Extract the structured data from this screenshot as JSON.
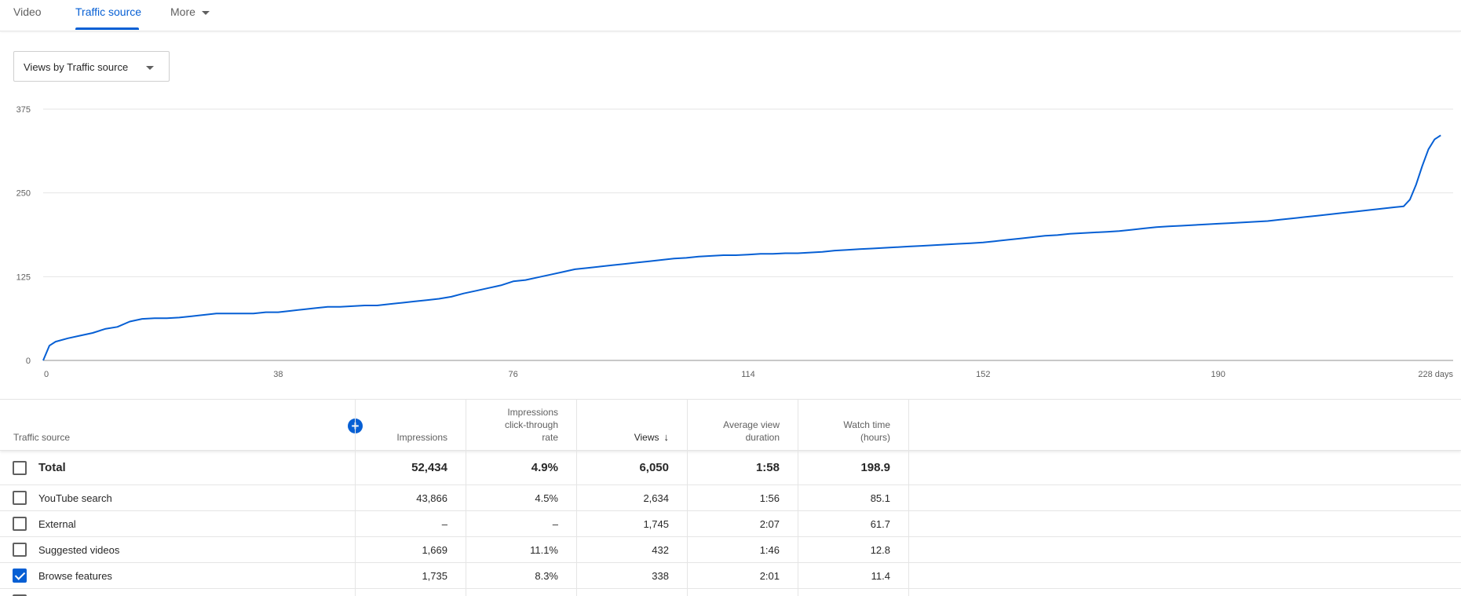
{
  "tabs": [
    {
      "label": "Video"
    },
    {
      "label": "Traffic source"
    },
    {
      "label": "More"
    }
  ],
  "metric_select": {
    "label": "Views by Traffic source"
  },
  "chart_data": {
    "type": "line",
    "title": "",
    "xlabel": "",
    "ylabel": "",
    "x_ticks": [
      "0",
      "38",
      "76",
      "114",
      "152",
      "190",
      "228 days"
    ],
    "y_ticks": [
      "0",
      "125",
      "250",
      "375"
    ],
    "xlim": [
      0,
      228
    ],
    "ylim": [
      0,
      375
    ],
    "grid": true,
    "color": "#065fd4",
    "series": [
      {
        "x": [
          0,
          1,
          2,
          4,
          6,
          8,
          10,
          12,
          14,
          16,
          18,
          20,
          22,
          24,
          26,
          28,
          30,
          32,
          34,
          36,
          38,
          40,
          42,
          44,
          46,
          48,
          50,
          52,
          54,
          56,
          58,
          60,
          62,
          64,
          66,
          68,
          70,
          72,
          74,
          76,
          78,
          80,
          82,
          84,
          86,
          88,
          90,
          92,
          94,
          96,
          98,
          100,
          102,
          104,
          106,
          108,
          110,
          112,
          114,
          116,
          118,
          120,
          122,
          124,
          126,
          128,
          130,
          132,
          134,
          136,
          138,
          140,
          142,
          144,
          146,
          148,
          150,
          152,
          154,
          156,
          158,
          160,
          162,
          164,
          166,
          168,
          170,
          172,
          174,
          176,
          178,
          180,
          182,
          184,
          186,
          188,
          190,
          192,
          194,
          196,
          198,
          200,
          202,
          204,
          206,
          208,
          210,
          212,
          214,
          216,
          218,
          220,
          221,
          222,
          223,
          224,
          225,
          226
        ],
        "y": [
          0,
          22,
          28,
          33,
          37,
          41,
          47,
          50,
          58,
          62,
          63,
          63,
          64,
          66,
          68,
          70,
          70,
          70,
          70,
          72,
          72,
          74,
          76,
          78,
          80,
          80,
          81,
          82,
          82,
          84,
          86,
          88,
          90,
          92,
          95,
          100,
          104,
          108,
          112,
          118,
          120,
          124,
          128,
          132,
          136,
          138,
          140,
          142,
          144,
          146,
          148,
          150,
          152,
          153,
          155,
          156,
          157,
          157,
          158,
          159,
          159,
          160,
          160,
          161,
          162,
          164,
          165,
          166,
          167,
          168,
          169,
          170,
          171,
          172,
          173,
          174,
          175,
          176,
          178,
          180,
          182,
          184,
          186,
          187,
          189,
          190,
          191,
          192,
          193,
          195,
          197,
          199,
          200,
          201,
          202,
          203,
          204,
          205,
          206,
          207,
          208,
          210,
          212,
          214,
          216,
          218,
          220,
          222,
          224,
          226,
          228,
          230,
          240,
          262,
          290,
          315,
          330,
          336
        ]
      }
    ]
  },
  "table": {
    "headers": {
      "source": "Traffic source",
      "impressions": "Impressions",
      "ctr": [
        "Impressions",
        "click-through",
        "rate"
      ],
      "views": "Views",
      "avg_duration": [
        "Average view",
        "duration"
      ],
      "watch_time": [
        "Watch time",
        "(hours)"
      ]
    },
    "total": {
      "name": "Total",
      "impressions": "52,434",
      "ctr": "4.9%",
      "views": "6,050",
      "avg": "1:58",
      "watch": "198.9"
    },
    "rows": [
      {
        "name": "YouTube search",
        "impressions": "43,866",
        "ctr": "4.5%",
        "views": "2,634",
        "avg": "1:56",
        "watch": "85.1"
      },
      {
        "name": "External",
        "impressions": "–",
        "ctr": "–",
        "views": "1,745",
        "avg": "2:07",
        "watch": "61.7"
      },
      {
        "name": "Suggested videos",
        "impressions": "1,669",
        "ctr": "11.1%",
        "views": "432",
        "avg": "1:46",
        "watch": "12.8"
      },
      {
        "name": "Browse features",
        "impressions": "1,735",
        "ctr": "8.3%",
        "views": "338",
        "avg": "2:01",
        "watch": "11.4"
      }
    ]
  }
}
